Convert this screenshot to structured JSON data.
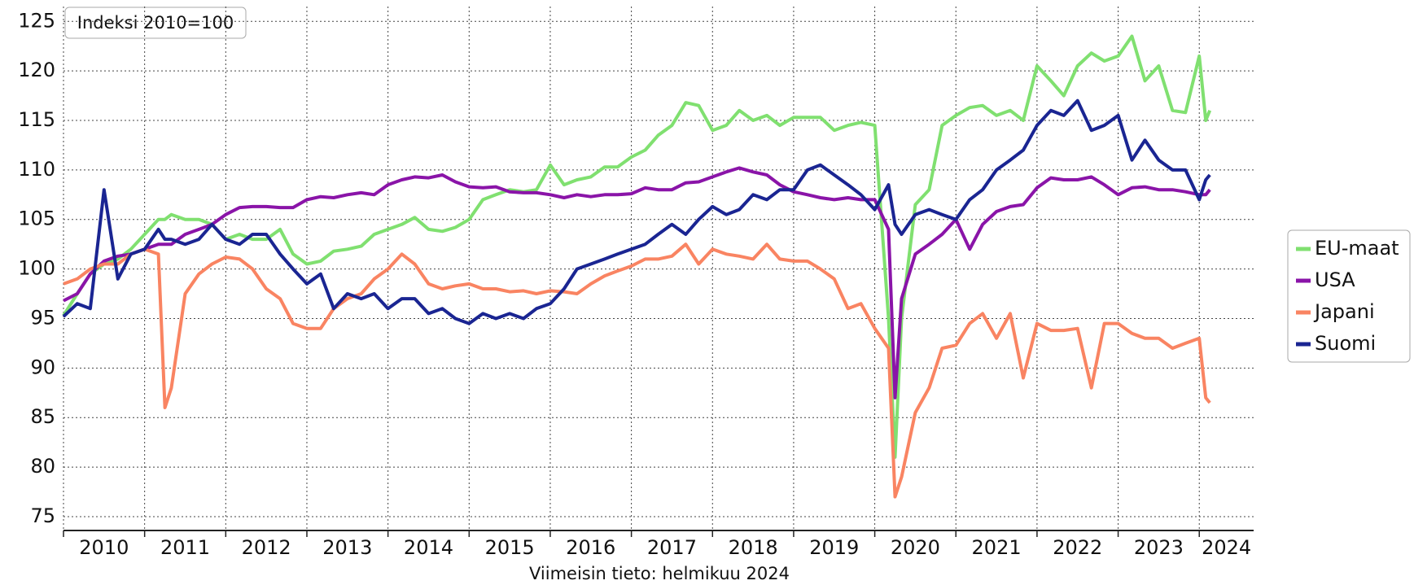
{
  "chart_data": {
    "type": "line",
    "title": "Indeksi 2010=100",
    "footer": "Viimeisin tieto: helmikuu 2024",
    "x": [
      2010,
      2010.17,
      2010.33,
      2010.5,
      2010.67,
      2010.83,
      2011,
      2011.17,
      2011.25,
      2011.33,
      2011.5,
      2011.67,
      2011.83,
      2012,
      2012.17,
      2012.33,
      2012.5,
      2012.67,
      2012.83,
      2013,
      2013.17,
      2013.33,
      2013.5,
      2013.67,
      2013.83,
      2014,
      2014.17,
      2014.33,
      2014.5,
      2014.67,
      2014.83,
      2015,
      2015.17,
      2015.33,
      2015.5,
      2015.67,
      2015.83,
      2016,
      2016.17,
      2016.33,
      2016.5,
      2016.67,
      2016.83,
      2017,
      2017.17,
      2017.33,
      2017.5,
      2017.67,
      2017.83,
      2018,
      2018.17,
      2018.33,
      2018.5,
      2018.67,
      2018.83,
      2019,
      2019.17,
      2019.33,
      2019.5,
      2019.67,
      2019.83,
      2020,
      2020.17,
      2020.25,
      2020.33,
      2020.5,
      2020.67,
      2020.83,
      2021,
      2021.17,
      2021.33,
      2021.5,
      2021.67,
      2021.83,
      2022,
      2022.17,
      2022.33,
      2022.5,
      2022.67,
      2022.83,
      2023,
      2023.17,
      2023.33,
      2023.5,
      2023.67,
      2023.83,
      2024,
      2024.08,
      2024.13
    ],
    "series": [
      {
        "name": "EU-maat",
        "color": "#80e070",
        "values": [
          95.3,
          97.5,
          99.5,
          100.5,
          101,
          102,
          103.5,
          105,
          105,
          105.5,
          105,
          105,
          104.5,
          103,
          103.5,
          103,
          103,
          104,
          101.5,
          100.5,
          100.8,
          101.8,
          102,
          102.3,
          103.5,
          104,
          104.5,
          105.2,
          104,
          103.8,
          104.2,
          105,
          107,
          107.5,
          108,
          107.8,
          108,
          110.5,
          108.5,
          109,
          109.3,
          110.3,
          110.3,
          111.3,
          112,
          113.5,
          114.5,
          116.8,
          116.5,
          114,
          114.5,
          116,
          115,
          115.5,
          114.5,
          115.3,
          115.3,
          115.3,
          114,
          114.5,
          114.8,
          114.5,
          95,
          81,
          95,
          106.5,
          108,
          114.5,
          115.5,
          116.3,
          116.5,
          115.5,
          116,
          115,
          120.5,
          119,
          117.5,
          120.5,
          121.8,
          121,
          121.5,
          123.5,
          119,
          120.5,
          116,
          115.8,
          121.5,
          115,
          116
        ]
      },
      {
        "name": "USA",
        "color": "#8a14a8",
        "values": [
          96.8,
          97.5,
          99.5,
          100.8,
          101.3,
          101.5,
          102,
          102.5,
          102.5,
          102.5,
          103.5,
          104,
          104.5,
          105.5,
          106.2,
          106.3,
          106.3,
          106.2,
          106.2,
          107,
          107.3,
          107.2,
          107.5,
          107.7,
          107.5,
          108.5,
          109,
          109.3,
          109.2,
          109.5,
          108.8,
          108.3,
          108.2,
          108.3,
          107.8,
          107.7,
          107.7,
          107.5,
          107.2,
          107.5,
          107.3,
          107.5,
          107.5,
          107.6,
          108.2,
          108,
          108,
          108.7,
          108.8,
          109.3,
          109.8,
          110.2,
          109.8,
          109.5,
          108.5,
          107.8,
          107.5,
          107.2,
          107,
          107.2,
          107,
          107,
          104,
          87,
          97,
          101.5,
          102.5,
          103.5,
          105,
          102,
          104.5,
          105.8,
          106.3,
          106.5,
          108.2,
          109.2,
          109,
          109,
          109.3,
          108.5,
          107.5,
          108.2,
          108.3,
          108,
          108,
          107.8,
          107.5,
          107.5,
          108
        ]
      },
      {
        "name": "Japani",
        "color": "#f98462",
        "values": [
          98.5,
          99,
          100,
          100.5,
          100.5,
          101.5,
          102,
          101.5,
          86,
          88,
          97.5,
          99.5,
          100.5,
          101.2,
          101,
          100,
          98,
          97,
          94.5,
          94,
          94,
          96,
          97,
          97.5,
          99,
          100,
          101.5,
          100.5,
          98.5,
          98,
          98.3,
          98.5,
          98,
          98,
          97.7,
          97.8,
          97.5,
          97.8,
          97.7,
          97.5,
          98.5,
          99.3,
          99.8,
          100.3,
          101,
          101,
          101.3,
          102.5,
          100.5,
          102,
          101.5,
          101.3,
          101,
          102.5,
          101,
          100.8,
          100.8,
          100,
          99,
          96,
          96.5,
          94,
          92,
          77,
          79,
          85.5,
          88,
          92,
          92.3,
          94.5,
          95.5,
          93,
          95.5,
          89,
          94.5,
          93.8,
          93.8,
          94,
          88,
          94.5,
          94.5,
          93.5,
          93,
          93,
          92,
          92.5,
          93,
          87,
          86.5
        ]
      },
      {
        "name": "Suomi",
        "color": "#1a2592",
        "values": [
          95.2,
          96.5,
          96,
          108,
          99,
          101.5,
          102,
          104,
          103,
          103,
          102.5,
          103,
          104.5,
          103,
          102.5,
          103.5,
          103.5,
          101.5,
          100,
          98.5,
          99.5,
          96,
          97.5,
          97,
          97.5,
          96,
          97,
          97,
          95.5,
          96,
          95,
          94.5,
          95.5,
          95,
          95.5,
          95,
          96,
          96.5,
          98,
          100,
          100.5,
          101,
          101.5,
          102,
          102.5,
          103.5,
          104.5,
          103.5,
          105,
          106.3,
          105.5,
          106,
          107.5,
          107,
          108,
          108,
          110,
          110.5,
          109.5,
          108.5,
          107.5,
          106,
          108.5,
          104.5,
          103.5,
          105.5,
          106,
          105.5,
          105,
          107,
          108,
          110,
          111,
          112,
          114.5,
          116,
          115.5,
          117,
          114,
          114.5,
          115.5,
          111,
          113,
          111,
          110,
          110,
          107,
          109,
          109.5
        ]
      }
    ],
    "xlim": [
      2010,
      2024.67
    ],
    "xticks": [
      2010,
      2011,
      2012,
      2013,
      2014,
      2015,
      2016,
      2017,
      2018,
      2019,
      2020,
      2021,
      2022,
      2023,
      2024
    ],
    "ylim": [
      73.6,
      126.5
    ],
    "yticks": [
      75,
      80,
      85,
      90,
      95,
      100,
      105,
      110,
      115,
      120,
      125
    ],
    "grid": true,
    "legend": "right"
  }
}
